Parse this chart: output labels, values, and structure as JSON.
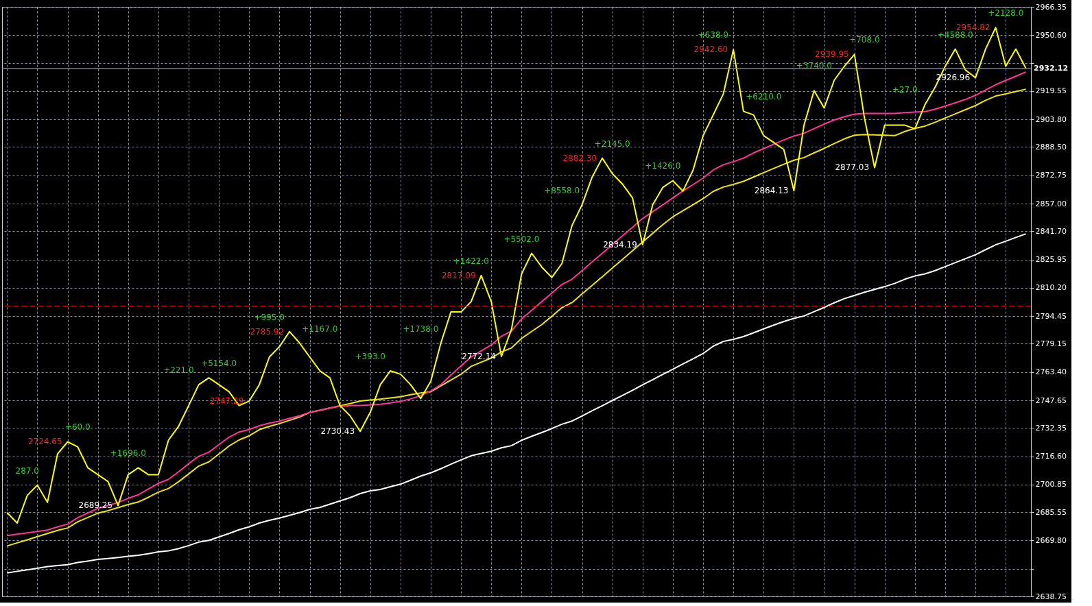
{
  "chart_data": {
    "type": "line",
    "categories": [
      null,
      null,
      null,
      null,
      null,
      null,
      null,
      null,
      null,
      null,
      null,
      null,
      null,
      null,
      null,
      null,
      null,
      null,
      null,
      null,
      null,
      null,
      null,
      null,
      null,
      null,
      null,
      null,
      null,
      null,
      null,
      null,
      null,
      null,
      null,
      null,
      null,
      null,
      null,
      null,
      null,
      null,
      null,
      null,
      null,
      null,
      null,
      null,
      null,
      null,
      null,
      null,
      null,
      null,
      null,
      null,
      null,
      null,
      null,
      null,
      null,
      null,
      null,
      null,
      null,
      null,
      null,
      null,
      null,
      null,
      null,
      null,
      null,
      null,
      null,
      null,
      null,
      null,
      null,
      null,
      null,
      null,
      null,
      null,
      null,
      null,
      null,
      null,
      null,
      null,
      null,
      null,
      null,
      null,
      null,
      null,
      null,
      null,
      null,
      null,
      null,
      null
    ],
    "ylim": [
      2638.75,
      2966.35
    ],
    "yticks": [
      {
        "value": 2966.35,
        "label": "2966.35"
      },
      {
        "value": 2950.6,
        "label": "2950.60"
      },
      {
        "value": 2935.2,
        "label": null
      },
      {
        "value": 2919.55,
        "label": "2919.55"
      },
      {
        "value": 2903.8,
        "label": "2903.80"
      },
      {
        "value": 2888.5,
        "label": "2888.50"
      },
      {
        "value": 2872.75,
        "label": "2872.75"
      },
      {
        "value": 2857.0,
        "label": "2857.00"
      },
      {
        "value": 2841.7,
        "label": "2841.70"
      },
      {
        "value": 2825.95,
        "label": "2825.95"
      },
      {
        "value": 2810.2,
        "label": "2810.20"
      },
      {
        "value": 2794.45,
        "label": "2794.45"
      },
      {
        "value": 2779.15,
        "label": "2779.15"
      },
      {
        "value": 2763.4,
        "label": "2763.40"
      },
      {
        "value": 2747.65,
        "label": "2747.65"
      },
      {
        "value": 2732.35,
        "label": "2732.35"
      },
      {
        "value": 2716.6,
        "label": "2716.60"
      },
      {
        "value": 2700.85,
        "label": "2700.85"
      },
      {
        "value": 2685.55,
        "label": "2685.55"
      },
      {
        "value": 2669.8,
        "label": "2669.80"
      },
      {
        "value": 2654.05,
        "label": null
      },
      {
        "value": 2638.75,
        "label": "2638.75"
      }
    ],
    "tick_labels": "y",
    "grid": true,
    "series": [
      {
        "color": "#ffffff",
        "values": [
          2651.8,
          2652.7,
          2653.5,
          2654.4,
          2655.3,
          2655.9,
          2656.4,
          2657.6,
          2658.4,
          2659.3,
          2659.8,
          2660.4,
          2661.0,
          2661.6,
          2662.5,
          2663.5,
          2664.1,
          2665.3,
          2667.0,
          2668.9,
          2669.9,
          2671.8,
          2673.7,
          2675.8,
          2677.4,
          2679.5,
          2681.0,
          2682.3,
          2683.8,
          2685.3,
          2687.1,
          2688.2,
          2690.0,
          2691.8,
          2693.6,
          2695.9,
          2697.4,
          2698.2,
          2699.7,
          2701.1,
          2703.3,
          2705.6,
          2707.4,
          2709.7,
          2712.2,
          2714.6,
          2716.9,
          2718.2,
          2719.4,
          2721.3,
          2722.5,
          2725.5,
          2727.7,
          2729.8,
          2732.0,
          2734.4,
          2736.2,
          2739.0,
          2741.9,
          2744.7,
          2747.6,
          2750.4,
          2753.3,
          2756.3,
          2759.2,
          2762.1,
          2765.0,
          2767.9,
          2770.8,
          2773.7,
          2777.8,
          2780.4,
          2781.6,
          2783.1,
          2785.2,
          2787.4,
          2789.5,
          2791.5,
          2793.2,
          2794.6,
          2797.0,
          2799.3,
          2801.9,
          2804.2,
          2806.0,
          2807.8,
          2809.3,
          2810.9,
          2812.7,
          2815.0,
          2816.8,
          2818.0,
          2819.8,
          2822.0,
          2824.2,
          2826.4,
          2828.6,
          2831.4,
          2834.1,
          2836.1,
          2838.2,
          2840.2
        ]
      },
      {
        "color": "#f2e600",
        "values": [
          2666.8,
          2668.5,
          2670.2,
          2672.0,
          2673.7,
          2675.4,
          2676.8,
          2680.2,
          2682.6,
          2685.0,
          2686.4,
          2688.1,
          2689.8,
          2691.2,
          2693.8,
          2696.7,
          2698.7,
          2702.5,
          2706.8,
          2711.2,
          2713.5,
          2717.9,
          2722.3,
          2725.7,
          2728.0,
          2731.4,
          2733.2,
          2734.8,
          2736.6,
          2738.4,
          2741.0,
          2742.2,
          2743.4,
          2744.7,
          2745.9,
          2747.3,
          2747.9,
          2748.4,
          2749.0,
          2749.7,
          2750.8,
          2751.8,
          2752.5,
          2755.7,
          2759.0,
          2762.2,
          2766.6,
          2768.9,
          2771.2,
          2774.6,
          2776.8,
          2782.1,
          2786.0,
          2789.8,
          2794.4,
          2799.2,
          2802.0,
          2806.8,
          2811.6,
          2816.4,
          2821.2,
          2826.0,
          2830.8,
          2835.7,
          2840.5,
          2845.3,
          2849.7,
          2853.1,
          2856.4,
          2859.8,
          2863.8,
          2866.2,
          2867.7,
          2869.4,
          2871.8,
          2874.2,
          2876.6,
          2878.9,
          2881.1,
          2882.6,
          2885.2,
          2887.7,
          2890.4,
          2893.0,
          2895.0,
          2895.4,
          2895.2,
          2895.0,
          2894.8,
          2897.1,
          2898.8,
          2900.1,
          2902.2,
          2904.6,
          2906.9,
          2909.2,
          2911.5,
          2914.4,
          2916.8,
          2918.0,
          2919.3,
          2920.6
        ]
      },
      {
        "color": "#ff3399",
        "values": [
          2672.6,
          2673.3,
          2674.1,
          2674.8,
          2675.6,
          2677.4,
          2678.9,
          2682.5,
          2685.1,
          2687.7,
          2689.2,
          2691.0,
          2693.2,
          2695.2,
          2698.4,
          2701.6,
          2703.8,
          2708.0,
          2712.5,
          2716.6,
          2718.9,
          2723.1,
          2727.2,
          2730.1,
          2731.5,
          2733.6,
          2735.0,
          2736.2,
          2737.7,
          2739.1,
          2741.0,
          2742.1,
          2743.5,
          2744.4,
          2744.8,
          2744.8,
          2745.1,
          2745.5,
          2746.3,
          2747.1,
          2748.5,
          2750.3,
          2752.9,
          2756.4,
          2761.8,
          2766.8,
          2771.8,
          2775.2,
          2778.5,
          2783.3,
          2786.2,
          2792.9,
          2797.7,
          2802.5,
          2807.3,
          2812.1,
          2815.0,
          2819.8,
          2824.6,
          2829.4,
          2834.2,
          2839.1,
          2843.9,
          2848.7,
          2852.5,
          2856.3,
          2860.2,
          2864.0,
          2867.6,
          2871.2,
          2875.7,
          2878.6,
          2880.3,
          2882.3,
          2885.2,
          2887.6,
          2890.0,
          2892.4,
          2894.6,
          2896.1,
          2898.7,
          2901.2,
          2903.5,
          2905.3,
          2906.7,
          2907.1,
          2907.1,
          2907.1,
          2907.1,
          2907.6,
          2907.9,
          2908.2,
          2909.5,
          2911.2,
          2913.0,
          2914.9,
          2917.2,
          2920.1,
          2923.1,
          2925.5,
          2927.8,
          2930.2
        ]
      },
      {
        "color": "#ffff00",
        "values": [
          2685.3,
          2679.5,
          2694.9,
          2700.6,
          2691.0,
          2717.9,
          2724.65,
          2721.8,
          2710.2,
          2706.4,
          2702.6,
          2689.25,
          2706.4,
          2710.2,
          2706.4,
          2706.4,
          2725.6,
          2733.3,
          2744.8,
          2756.4,
          2760.2,
          2756.4,
          2752.5,
          2744.8,
          2747.29,
          2756.4,
          2771.8,
          2777.5,
          2785.92,
          2779.5,
          2771.8,
          2764.1,
          2760.2,
          2744.8,
          2739.1,
          2730.43,
          2741.0,
          2756.4,
          2764.1,
          2762.2,
          2756.4,
          2748.7,
          2758.3,
          2779.5,
          2796.8,
          2796.8,
          2802.5,
          2817.09,
          2802.5,
          2772.14,
          2787.1,
          2817.9,
          2829.4,
          2821.8,
          2816.0,
          2823.7,
          2844.8,
          2856.4,
          2871.8,
          2882.3,
          2873.7,
          2867.9,
          2860.2,
          2834.19,
          2856.4,
          2866.0,
          2869.8,
          2864.0,
          2875.6,
          2894.8,
          2906.3,
          2917.9,
          2942.6,
          2908.3,
          2906.3,
          2894.8,
          2891.0,
          2887.1,
          2864.13,
          2900.6,
          2919.8,
          2910.2,
          2925.6,
          2933.3,
          2939.95,
          2904.4,
          2877.03,
          2900.6,
          2900.6,
          2900.6,
          2898.6,
          2912.1,
          2921.7,
          2933.3,
          2942.9,
          2931.3,
          2926.96,
          2942.9,
          2954.82,
          2933.3,
          2942.9,
          2932.12
        ],
        "value_labels": [
          null,
          null,
          null,
          null,
          null,
          null,
          "2724.65",
          null,
          null,
          null,
          null,
          "2689.25",
          null,
          null,
          null,
          null,
          null,
          null,
          null,
          null,
          null,
          null,
          null,
          null,
          "2747.29",
          null,
          null,
          null,
          "2785.92",
          null,
          null,
          null,
          null,
          null,
          null,
          "2730.43",
          null,
          null,
          null,
          null,
          null,
          null,
          null,
          null,
          null,
          null,
          null,
          "2817.09",
          null,
          "2772.14",
          null,
          null,
          null,
          null,
          null,
          null,
          null,
          null,
          null,
          "2882.30",
          null,
          null,
          null,
          "2834.19",
          null,
          null,
          null,
          null,
          null,
          null,
          null,
          null,
          "2942.60",
          null,
          null,
          null,
          null,
          null,
          "2864.13",
          null,
          null,
          null,
          null,
          null,
          "2939.95",
          null,
          "2877.03",
          null,
          null,
          null,
          null,
          null,
          null,
          null,
          null,
          null,
          "2926.96",
          null,
          "2954.82",
          null,
          null,
          null
        ]
      }
    ],
    "ref_lines": [
      {
        "axis": "y",
        "value": 2932.12,
        "label": "2932.12",
        "color": "#8a97a6",
        "line_style": "solid"
      },
      {
        "axis": "y",
        "value": 2800,
        "color": "#cc0000",
        "line_style": "dashed"
      }
    ],
    "annotations": [
      "287.0",
      "+60.0",
      "+1696.0",
      "+221.0",
      "+5154.0",
      "+995.0",
      "+1167.0",
      "+393.0",
      "+1738.0",
      "+1422.0",
      "+5502.0",
      "+8558.0",
      "+2145.0",
      "+1426.0",
      "+638.0",
      "+6210.0",
      "+3740.0",
      "+708.0",
      "+27.0",
      "+4588.0",
      "+2128.0"
    ]
  }
}
